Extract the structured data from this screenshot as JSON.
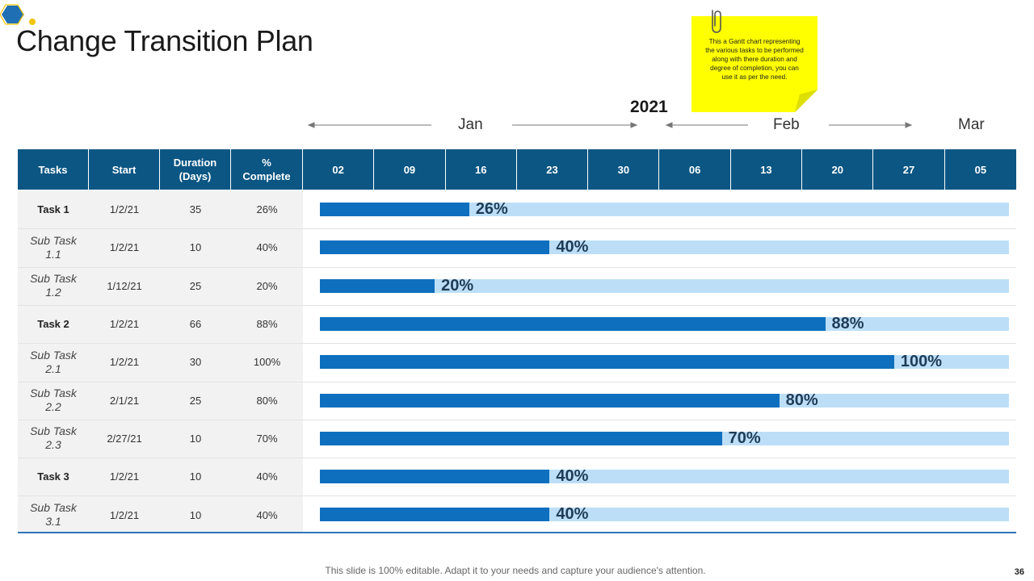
{
  "slide": {
    "title": "Change Transition Plan",
    "note": "This a Gantt chart representing the various tasks to be performed along with there duration and degree of completion, you can use it as per the need.",
    "year": "2021",
    "months": [
      "Jan",
      "Feb",
      "Mar"
    ],
    "footer": "This slide is 100% editable. Adapt it to your needs and capture your audience's attention.",
    "page_number": "36"
  },
  "table": {
    "headers": {
      "tasks": "Tasks",
      "start": "Start",
      "duration_line1": "Duration",
      "duration_line2": "(Days)",
      "complete_line1": "%",
      "complete_line2": "Complete"
    },
    "rows": [
      {
        "name_line1": "Task 1",
        "name_line2": "",
        "kind": "main",
        "start": "1/2/21",
        "duration": "35",
        "complete": "26%"
      },
      {
        "name_line1": "Sub Task",
        "name_line2": "1.1",
        "kind": "sub",
        "start": "1/2/21",
        "duration": "10",
        "complete": "40%"
      },
      {
        "name_line1": "Sub Task",
        "name_line2": "1.2",
        "kind": "sub",
        "start": "1/12/21",
        "duration": "25",
        "complete": "20%"
      },
      {
        "name_line1": "Task 2",
        "name_line2": "",
        "kind": "main",
        "start": "1/2/21",
        "duration": "66",
        "complete": "88%"
      },
      {
        "name_line1": "Sub Task",
        "name_line2": "2.1",
        "kind": "sub",
        "start": "1/2/21",
        "duration": "30",
        "complete": "100%"
      },
      {
        "name_line1": "Sub Task",
        "name_line2": "2.2",
        "kind": "sub",
        "start": "2/1/21",
        "duration": "25",
        "complete": "80%"
      },
      {
        "name_line1": "Sub Task",
        "name_line2": "2.3",
        "kind": "sub",
        "start": "2/27/21",
        "duration": "10",
        "complete": "70%"
      },
      {
        "name_line1": "Task 3",
        "name_line2": "",
        "kind": "main",
        "start": "1/2/21",
        "duration": "10",
        "complete": "40%"
      },
      {
        "name_line1": "Sub Task",
        "name_line2": "3.1",
        "kind": "sub",
        "start": "1/2/21",
        "duration": "10",
        "complete": "40%"
      }
    ]
  },
  "chart_data": {
    "type": "bar",
    "orientation": "horizontal",
    "title": "Change Transition Plan",
    "timeline_year": "2021",
    "timeline_months": [
      "Jan",
      "Feb",
      "Mar"
    ],
    "week_columns": [
      "02",
      "09",
      "16",
      "23",
      "30",
      "06",
      "13",
      "20",
      "27",
      "05"
    ],
    "categories": [
      "Task 1",
      "Sub Task 1.1",
      "Sub Task 1.2",
      "Task 2",
      "Sub Task 2.1",
      "Sub Task 2.2",
      "Sub Task 2.3",
      "Task 3",
      "Sub Task 3.1"
    ],
    "values": [
      26,
      40,
      20,
      88,
      100,
      80,
      70,
      40,
      40
    ],
    "value_labels": [
      "26%",
      "40%",
      "20%",
      "88%",
      "100%",
      "80%",
      "70%",
      "40%",
      "40%"
    ],
    "xlim": [
      0,
      120
    ],
    "unit": "%"
  },
  "colors": {
    "header_bg": "#0b5683",
    "bar_fill": "#0e6fbe",
    "bar_track": "#bcdff7",
    "sticky_note": "#ffff00",
    "logo_blue": "#1f6fb4",
    "logo_yellow": "#f2c400"
  }
}
